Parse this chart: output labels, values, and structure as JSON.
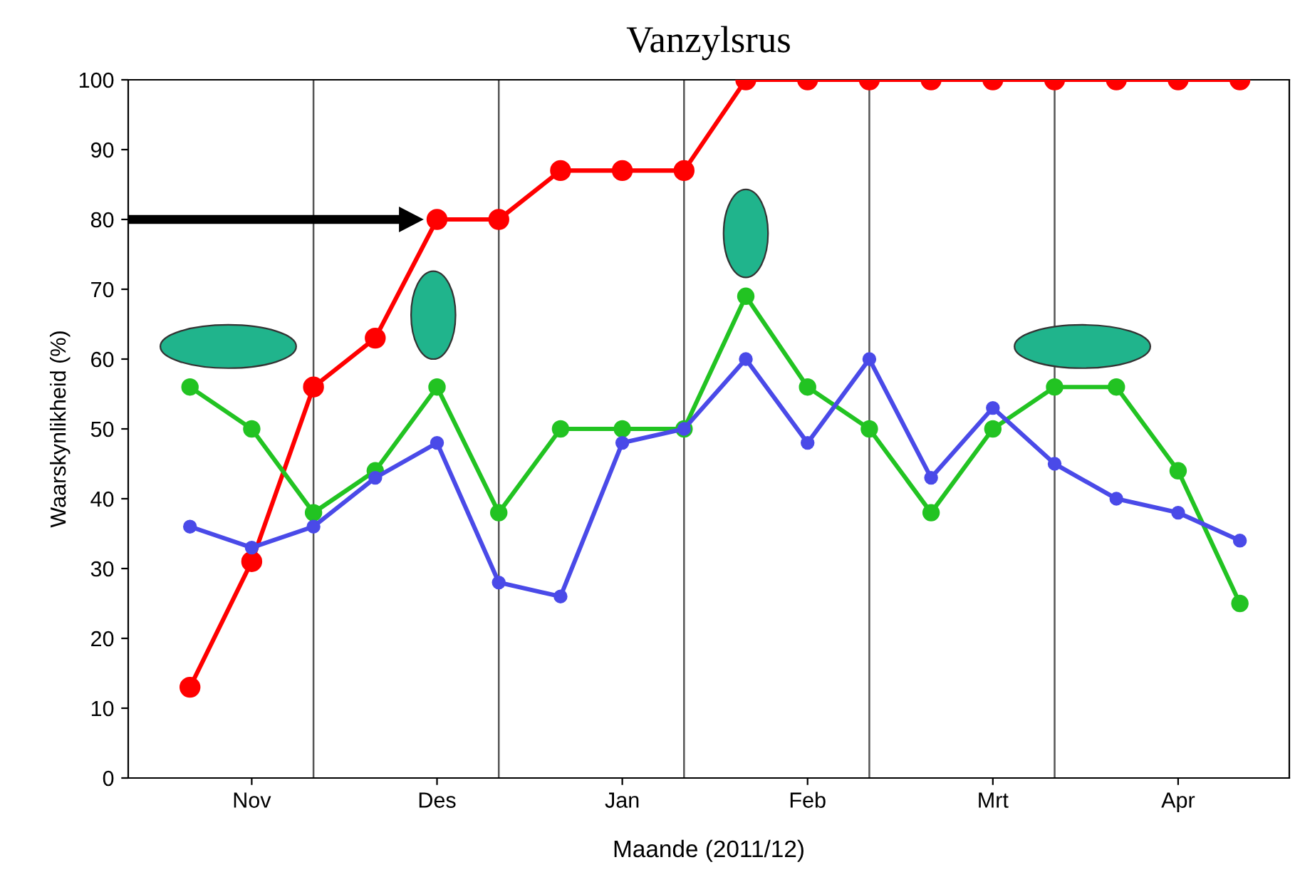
{
  "chart_data": {
    "type": "line",
    "title": "Vanzylsrus",
    "xlabel": "Maande (2011/12)",
    "ylabel": "Waarskynlikheid (%)",
    "categories": [
      null,
      "Nov",
      null,
      null,
      "Des",
      null,
      null,
      "Jan",
      null,
      null,
      "Feb",
      null,
      null,
      "Mrt",
      null,
      null,
      "Apr",
      null
    ],
    "ylim": [
      0,
      100
    ],
    "yticks": [
      0,
      10,
      20,
      30,
      40,
      50,
      60,
      70,
      80,
      90,
      100
    ],
    "series": [
      {
        "color": "#ff0000",
        "values": [
          13,
          31,
          56,
          63,
          80,
          80,
          87,
          87,
          87,
          100,
          100,
          100,
          100,
          100,
          100,
          100,
          100,
          100
        ]
      },
      {
        "color": "#22c322",
        "values": [
          56,
          50,
          38,
          44,
          56,
          38,
          50,
          50,
          50,
          69,
          56,
          50,
          38,
          50,
          56,
          56,
          44,
          25
        ]
      },
      {
        "color": "#4a4ae8",
        "values": [
          36,
          33,
          36,
          43,
          48,
          28,
          26,
          48,
          50,
          60,
          48,
          60,
          43,
          53,
          45,
          40,
          38,
          34
        ]
      }
    ],
    "marker": "circle",
    "line_style": "solid",
    "grid": "x",
    "legend": false
  }
}
